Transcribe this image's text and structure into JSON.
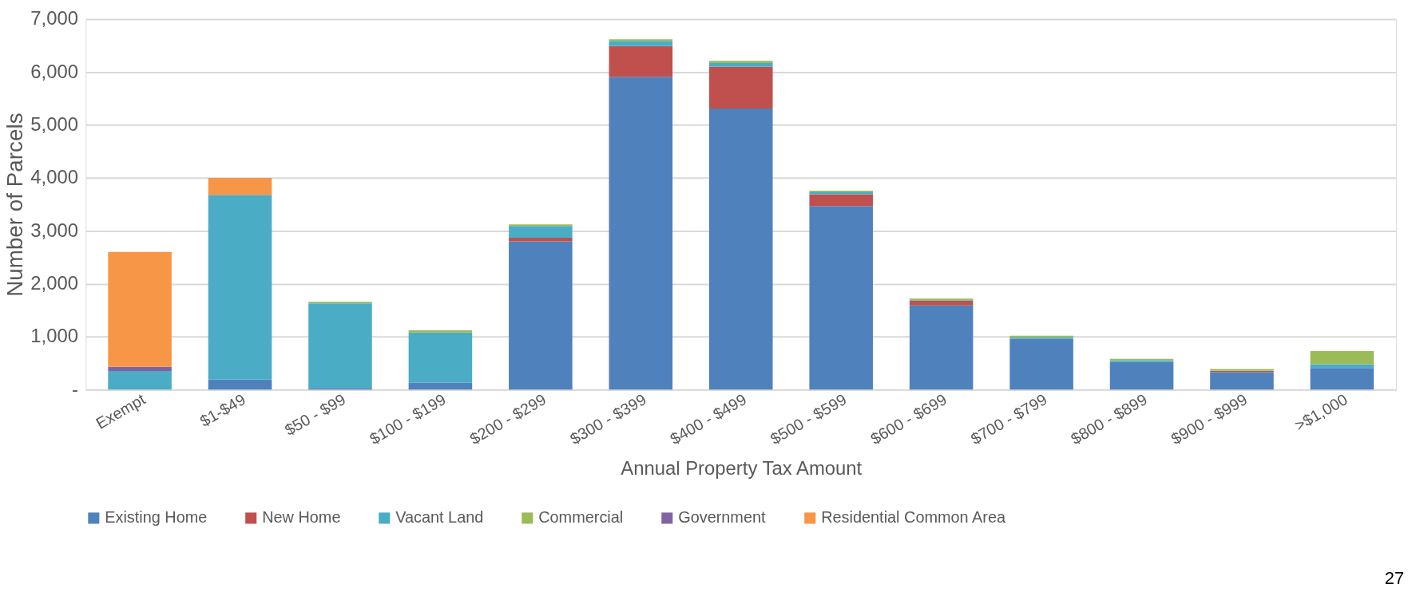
{
  "chart_data": {
    "type": "bar",
    "stacked": true,
    "xlabel": "Annual Property Tax Amount",
    "ylabel": "Number  of Parcels",
    "categories": [
      "Exempt",
      "$1-$49",
      "$50 - $99",
      "$100 - $199",
      "$200 - $299",
      "$300 - $399",
      "$400 - $499",
      "$500 - $599",
      "$600 - $699",
      "$700 - $799",
      "$800 - $899",
      "$900 - $999",
      ">$1,000"
    ],
    "series": [
      {
        "name": "Existing Home",
        "color": "#4f81bd",
        "values": [
          0,
          190,
          30,
          130,
          2800,
          5910,
          5310,
          3470,
          1590,
          960,
          520,
          330,
          410
        ]
      },
      {
        "name": "New Home",
        "color": "#c0504d",
        "values": [
          0,
          0,
          0,
          0,
          70,
          580,
          790,
          220,
          90,
          0,
          0,
          20,
          0
        ]
      },
      {
        "name": "Vacant Land",
        "color": "#4bacc6",
        "values": [
          350,
          3490,
          1600,
          950,
          220,
          100,
          70,
          40,
          10,
          30,
          30,
          10,
          70
        ]
      },
      {
        "name": "Commercial",
        "color": "#9bbb59",
        "values": [
          0,
          0,
          30,
          40,
          30,
          30,
          40,
          30,
          30,
          30,
          30,
          30,
          250
        ]
      },
      {
        "name": "Government",
        "color": "#8064a2",
        "values": [
          80,
          0,
          0,
          0,
          0,
          0,
          0,
          0,
          0,
          0,
          0,
          0,
          0
        ]
      },
      {
        "name": "Residential Common Area",
        "color": "#f79646",
        "values": [
          2170,
          320,
          0,
          0,
          0,
          0,
          0,
          0,
          0,
          0,
          0,
          0,
          0
        ]
      }
    ],
    "ylim": [
      0,
      7000
    ],
    "yticks": [
      {
        "value": 0,
        "label": "-"
      },
      {
        "value": 1000,
        "label": "1,000"
      },
      {
        "value": 2000,
        "label": "2,000"
      },
      {
        "value": 3000,
        "label": "3,000"
      },
      {
        "value": 4000,
        "label": "4,000"
      },
      {
        "value": 5000,
        "label": "5,000"
      },
      {
        "value": 6000,
        "label": "6,000"
      },
      {
        "value": 7000,
        "label": "7,000"
      }
    ],
    "grid": "y",
    "legend": "bottom",
    "annotations": [
      "27"
    ]
  }
}
